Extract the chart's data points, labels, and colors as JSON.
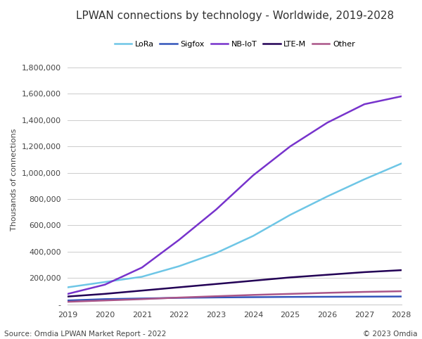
{
  "title": "LPWAN connections by technology - Worldwide, 2019-2028",
  "ylabel": "Thousands of connections",
  "years": [
    2019,
    2020,
    2021,
    2022,
    2023,
    2024,
    2025,
    2026,
    2027,
    2028
  ],
  "series": {
    "LoRa": {
      "values": [
        130000,
        170000,
        210000,
        290000,
        390000,
        520000,
        680000,
        820000,
        950000,
        1070000
      ],
      "color": "#6EC6E6"
    },
    "Sigfox": {
      "values": [
        30000,
        40000,
        45000,
        50000,
        53000,
        55000,
        57000,
        58000,
        59000,
        60000
      ],
      "color": "#3355BB"
    },
    "NB-IoT": {
      "values": [
        80000,
        150000,
        280000,
        490000,
        720000,
        980000,
        1200000,
        1380000,
        1520000,
        1580000
      ],
      "color": "#7733CC"
    },
    "LTE-M": {
      "values": [
        60000,
        80000,
        105000,
        130000,
        155000,
        180000,
        205000,
        225000,
        245000,
        260000
      ],
      "color": "#220055"
    },
    "Other": {
      "values": [
        20000,
        30000,
        40000,
        52000,
        62000,
        72000,
        80000,
        88000,
        95000,
        100000
      ],
      "color": "#AA5588"
    }
  },
  "ylim": [
    0,
    1900000
  ],
  "yticks": [
    0,
    200000,
    400000,
    600000,
    800000,
    1000000,
    1200000,
    1400000,
    1600000,
    1800000
  ],
  "background_color": "#FFFFFF",
  "grid_color": "#CCCCCC",
  "source_text": "Source: Omdia LPWAN Market Report - 2022",
  "copyright_text": "© 2023 Omdia",
  "title_fontsize": 11,
  "legend_fontsize": 8,
  "tick_fontsize": 8,
  "ylabel_fontsize": 8
}
